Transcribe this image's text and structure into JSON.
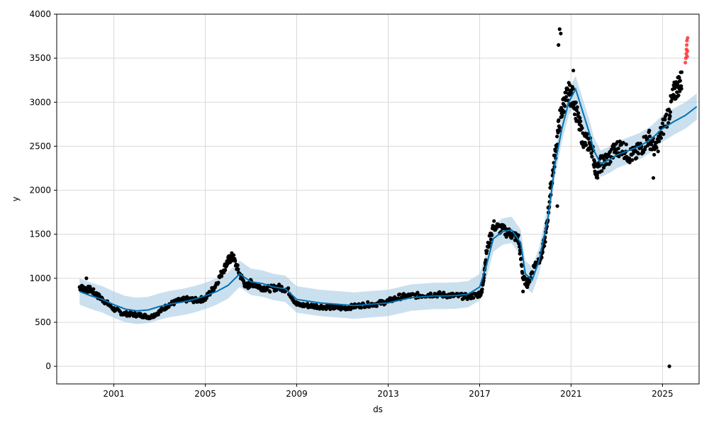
{
  "chart_data": {
    "type": "scatter",
    "title": "",
    "xlabel": "ds",
    "ylabel": "y",
    "xlim": [
      1998.5,
      2026.6
    ],
    "ylim": [
      -200,
      4000
    ],
    "x_ticks": [
      2001,
      2005,
      2009,
      2013,
      2017,
      2021,
      2025
    ],
    "x_tick_labels": [
      "2001",
      "2005",
      "2009",
      "2013",
      "2017",
      "2021",
      "2025"
    ],
    "y_ticks": [
      0,
      500,
      1000,
      1500,
      2000,
      2500,
      3000,
      3500,
      4000
    ],
    "y_tick_labels": [
      "0",
      "500",
      "1000",
      "1500",
      "2000",
      "2500",
      "3000",
      "3500",
      "4000"
    ],
    "grid": true,
    "colors": {
      "observed": "#000000",
      "outliers": "#ff3333",
      "forecast_line": "#0072b2",
      "uncertainty_band": "#a9cce3",
      "grid": "#d9d9d9"
    },
    "forecast_yhat": {
      "x": [
        1999.5,
        2000.0,
        2000.5,
        2001.0,
        2001.5,
        2002.0,
        2002.5,
        2003.0,
        2003.5,
        2004.0,
        2004.5,
        2005.0,
        2005.5,
        2006.0,
        2006.5,
        2007.0,
        2007.5,
        2008.0,
        2008.5,
        2009.0,
        2009.5,
        2010.0,
        2010.5,
        2011.0,
        2011.5,
        2012.0,
        2012.5,
        2013.0,
        2013.5,
        2014.0,
        2014.5,
        2015.0,
        2015.5,
        2016.0,
        2016.5,
        2017.0,
        2017.3,
        2017.6,
        2018.0,
        2018.4,
        2018.8,
        2019.0,
        2019.3,
        2019.6,
        2020.0,
        2020.3,
        2020.6,
        2020.9,
        2021.2,
        2021.5,
        2021.8,
        2022.0,
        2022.3,
        2022.7,
        2023.0,
        2023.5,
        2024.0,
        2024.5,
        2025.0,
        2025.5,
        2026.0,
        2026.5
      ],
      "y": [
        850,
        800,
        760,
        700,
        650,
        630,
        640,
        680,
        710,
        730,
        760,
        800,
        850,
        920,
        1050,
        960,
        940,
        900,
        880,
        760,
        740,
        720,
        710,
        700,
        690,
        700,
        710,
        720,
        750,
        780,
        790,
        800,
        800,
        805,
        820,
        900,
        1150,
        1450,
        1530,
        1550,
        1400,
        1050,
        980,
        1200,
        1700,
        2300,
        2700,
        3000,
        3150,
        2900,
        2650,
        2450,
        2300,
        2350,
        2400,
        2450,
        2500,
        2580,
        2700,
        2780,
        2850,
        2950
      ]
    },
    "uncertainty_band_halfwidth": 150,
    "observed_series": {
      "x": [
        1999.5,
        1999.7,
        2000.0,
        2000.3,
        2000.6,
        2001.0,
        2001.4,
        2001.8,
        2002.2,
        2002.6,
        2003.0,
        2003.4,
        2003.8,
        2004.2,
        2004.6,
        2005.0,
        2005.4,
        2005.8,
        2006.0,
        2006.2,
        2006.5,
        2006.8,
        2007.0,
        2007.4,
        2007.8,
        2008.2,
        2008.6,
        2009.0,
        2009.5,
        2010.0,
        2010.5,
        2011.0,
        2011.5,
        2012.0,
        2012.5,
        2013.0,
        2013.5,
        2014.0,
        2014.5,
        2015.0,
        2015.5,
        2016.0,
        2016.5,
        2016.9,
        2017.1,
        2017.3,
        2017.6,
        2018.0,
        2018.4,
        2018.7,
        2018.9,
        2019.1,
        2019.4,
        2019.7,
        2019.9,
        2020.1,
        2020.3,
        2020.5,
        2020.7,
        2020.9,
        2021.1,
        2021.3,
        2021.5,
        2021.7,
        2021.9,
        2022.1,
        2022.3,
        2022.6,
        2022.9,
        2023.2,
        2023.5,
        2023.8,
        2024.1,
        2024.4,
        2024.7,
        2025.0,
        2025.3,
        2025.5,
        2025.7,
        2025.85
      ],
      "y": [
        900,
        880,
        870,
        800,
        740,
        650,
        600,
        590,
        580,
        560,
        620,
        700,
        740,
        760,
        750,
        770,
        900,
        1100,
        1200,
        1250,
        1050,
        900,
        950,
        900,
        880,
        900,
        870,
        700,
        690,
        680,
        670,
        660,
        680,
        700,
        710,
        740,
        790,
        800,
        810,
        820,
        810,
        800,
        790,
        810,
        840,
        1300,
        1600,
        1550,
        1500,
        1450,
        1000,
        930,
        1150,
        1250,
        1500,
        2000,
        2400,
        2800,
        3000,
        3100,
        3050,
        2800,
        2600,
        2550,
        2500,
        2200,
        2300,
        2350,
        2450,
        2500,
        2400,
        2400,
        2500,
        2600,
        2450,
        2700,
        2900,
        3100,
        3200,
        3250
      ]
    },
    "isolated_points": [
      {
        "x": 1999.8,
        "y": 1000
      },
      {
        "x": 2020.4,
        "y": 1820
      },
      {
        "x": 2020.5,
        "y": 3830
      },
      {
        "x": 2020.55,
        "y": 3780
      },
      {
        "x": 2020.45,
        "y": 3650
      },
      {
        "x": 2021.1,
        "y": 3360
      },
      {
        "x": 2024.6,
        "y": 2140
      },
      {
        "x": 2025.3,
        "y": 0
      },
      {
        "x": 2018.9,
        "y": 850
      }
    ],
    "outlier_points": {
      "x": [
        2026.0,
        2026.02,
        2026.04,
        2026.05,
        2026.06,
        2026.07,
        2026.08,
        2026.09,
        2026.1
      ],
      "y": [
        3450,
        3500,
        3550,
        3600,
        3650,
        3700,
        3520,
        3580,
        3730
      ]
    }
  }
}
